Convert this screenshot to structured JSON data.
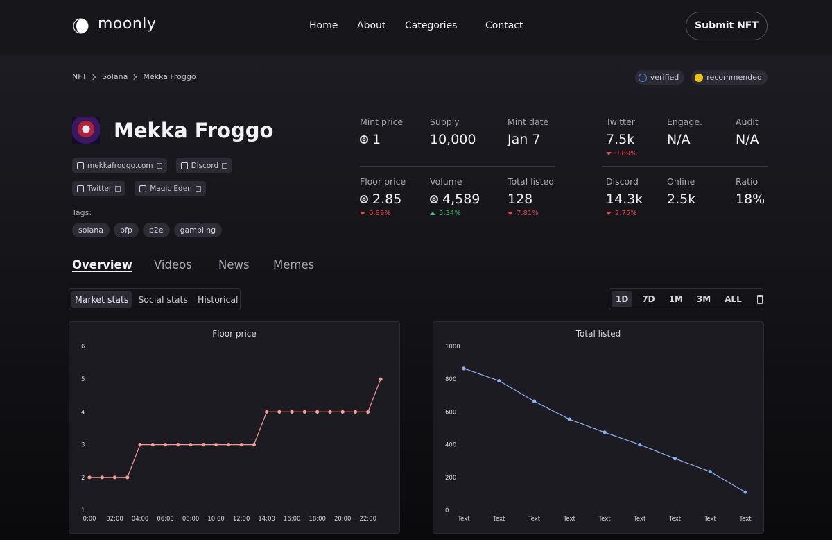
{
  "header": {
    "logo": "moonly",
    "nav": [
      "Home",
      "About",
      "Categories",
      "Contact"
    ],
    "button": "Submit NFT"
  },
  "breadcrumb": [
    "NFT",
    "Solana",
    "Mekka Froggo"
  ],
  "badges": [
    "verified",
    "recommended"
  ],
  "project": {
    "name": "Mekka Froggo",
    "links": [
      "mekkafroggo.com",
      "Discord",
      "Twitter",
      "Magic Eden"
    ],
    "tags_label": "Tags:",
    "tags": [
      "solana",
      "pfp",
      "p2e",
      "gambling"
    ]
  },
  "stats": [
    {
      "label": "Mint price",
      "value": "1",
      "sol": true
    },
    {
      "label": "Supply",
      "value": "10,000"
    },
    {
      "label": "Mint date",
      "value": "Jan 7"
    },
    {
      "label": "Twitter",
      "value": "7.5k",
      "change": "0.89%",
      "trend": "down"
    },
    {
      "label": "Engage.",
      "value": "N/A"
    },
    {
      "label": "Audit",
      "value": "N/A"
    },
    {
      "label": "Floor price",
      "value": "2.85",
      "sol": true,
      "change": "0.89%",
      "trend": "down"
    },
    {
      "label": "Volume",
      "value": "4,589",
      "sol": true,
      "change": "5.34%",
      "trend": "up"
    },
    {
      "label": "Total listed",
      "value": "128",
      "change": "7.81%",
      "trend": "down"
    },
    {
      "label": "Discord",
      "value": "14.3k",
      "change": "2.75%",
      "trend": "down"
    },
    {
      "label": "Online",
      "value": "2.5k"
    },
    {
      "label": "Ratio",
      "value": "18%"
    }
  ],
  "tabs": [
    "Overview",
    "Videos",
    "News",
    "Memes"
  ],
  "subtabs": [
    "Market stats",
    "Social stats",
    "Historical"
  ],
  "ranges": [
    "1D",
    "7D",
    "1M",
    "3M",
    "ALL"
  ],
  "chart_data": [
    {
      "type": "line",
      "title": "Floor price",
      "categories": [
        "0:00",
        null,
        "02:00",
        null,
        "04:00",
        null,
        "06:00",
        null,
        "08:00",
        null,
        "10:00",
        null,
        "12:00",
        null,
        "14:00",
        null,
        "16:00",
        null,
        "18:00",
        null,
        "20:00",
        null,
        "22:00",
        null
      ],
      "values": [
        2,
        2,
        2,
        2,
        3,
        3,
        3,
        3,
        3,
        3,
        3,
        3,
        3,
        3,
        4,
        4,
        4,
        4,
        4,
        4,
        4,
        4,
        4,
        5
      ],
      "color": "#f29d97",
      "ylim": [
        1,
        6
      ],
      "yticks": [
        1,
        2,
        3,
        4,
        5,
        6
      ]
    },
    {
      "type": "line",
      "title": "Total listed",
      "categories": [
        "Text",
        "Text",
        "Text",
        "Text",
        "Text",
        "Text",
        "Text",
        "Text",
        "Text"
      ],
      "values": [
        865,
        790,
        665,
        555,
        475,
        400,
        315,
        235,
        110
      ],
      "color": "#8fb0f0",
      "ylim": [
        0,
        1000
      ],
      "yticks": [
        0,
        200,
        400,
        600,
        800,
        1000
      ]
    }
  ]
}
